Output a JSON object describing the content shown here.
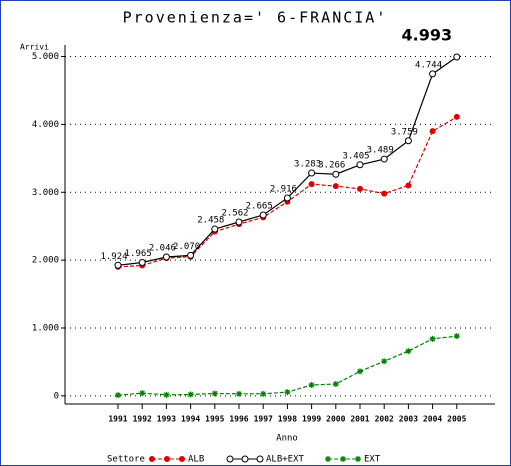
{
  "chart_data": {
    "type": "line",
    "title": "Provenienza=' 6-FRANCIA'",
    "y_label": "Arrivi",
    "x_label": "Anno",
    "legend_title": "Settore",
    "categories": [
      "1991",
      "1992",
      "1993",
      "1994",
      "1995",
      "1996",
      "1997",
      "1998",
      "1999",
      "2000",
      "2001",
      "2002",
      "2003",
      "2004",
      "2005"
    ],
    "series": [
      {
        "name": "ALB",
        "color": "#e00000",
        "marker": "dot",
        "dashed": true,
        "values": [
          1900,
          1920,
          2030,
          2050,
          2420,
          2530,
          2630,
          2860,
          3120,
          3090,
          3050,
          2980,
          3100,
          3900,
          4110
        ]
      },
      {
        "name": "ALB+EXT",
        "color": "#000000",
        "marker": "circle",
        "dashed": false,
        "values": [
          1924,
          1965,
          2046,
          2070,
          2458,
          2562,
          2665,
          2916,
          3283,
          3266,
          3405,
          3489,
          3759,
          4744,
          4993
        ],
        "value_labels": [
          "1.924",
          "1.965",
          "2.046",
          "2.070",
          "2.458",
          "2.562",
          "2.665",
          "2.916",
          "3.283",
          "3.266",
          "3.405",
          "3.489",
          "3.759",
          "4.744",
          "4.993"
        ]
      },
      {
        "name": "EXT",
        "color": "#008000",
        "marker": "star",
        "dashed": true,
        "values": [
          10,
          40,
          15,
          20,
          35,
          30,
          30,
          55,
          160,
          175,
          360,
          510,
          660,
          840,
          880
        ]
      }
    ],
    "ylim": [
      -120,
      5170
    ],
    "yticks": [
      0,
      {
        "value": 1000,
        "label": "1.000"
      },
      {
        "value": 2000,
        "label": "2.000"
      },
      {
        "value": 3000,
        "label": "3.000"
      },
      {
        "value": 4000,
        "label": "4.000"
      },
      {
        "value": 5000,
        "label": "5.000"
      }
    ],
    "grid": true
  }
}
